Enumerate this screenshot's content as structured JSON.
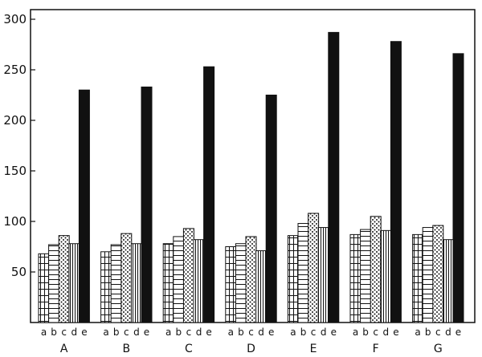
{
  "chart_data": {
    "type": "bar",
    "title": "",
    "xlabel": "",
    "ylabel": "",
    "ylim": [
      0,
      305
    ],
    "yticks": [
      50,
      100,
      150,
      200,
      250,
      300
    ],
    "ytick_labels": [
      "50",
      "100",
      "150",
      "200",
      "250",
      "300"
    ],
    "categories": [
      "A",
      "B",
      "C",
      "D",
      "E",
      "F",
      "G"
    ],
    "series": [
      {
        "name": "a",
        "pattern": "grid",
        "values": [
          68,
          70,
          78,
          75,
          86,
          87,
          87
        ]
      },
      {
        "name": "b",
        "pattern": "horizontal",
        "values": [
          77,
          77,
          85,
          78,
          98,
          92,
          94
        ]
      },
      {
        "name": "c",
        "pattern": "dots",
        "values": [
          86,
          88,
          93,
          85,
          108,
          105,
          96
        ]
      },
      {
        "name": "d",
        "pattern": "vertical",
        "values": [
          78,
          78,
          82,
          71,
          94,
          91,
          82
        ]
      },
      {
        "name": "e",
        "pattern": "solid",
        "values": [
          230,
          233,
          253,
          225,
          287,
          278,
          266
        ]
      }
    ],
    "grid": false,
    "legend": "none"
  },
  "colors": {
    "ink": "#111111",
    "background": "#ffffff"
  }
}
